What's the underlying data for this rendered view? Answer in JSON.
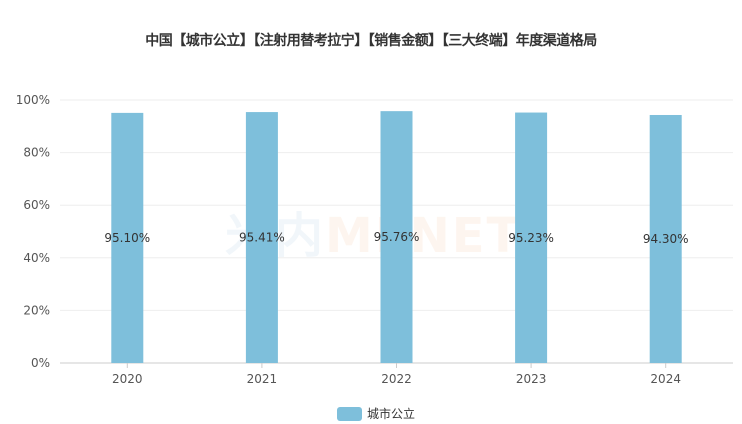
{
  "chart_data": {
    "type": "bar",
    "title": "中国【城市公立】【注射用替考拉宁】【销售金额】【三大终端】年度渠道格局",
    "categories": [
      "2020",
      "2021",
      "2022",
      "2023",
      "2024"
    ],
    "series": [
      {
        "name": "城市公立",
        "values": [
          95.1,
          95.41,
          95.76,
          95.23,
          94.3
        ],
        "labels": [
          "95.10%",
          "95.41%",
          "95.76%",
          "95.23%",
          "94.30%"
        ],
        "color": "#7ebfdb"
      }
    ],
    "yticks": [
      "0%",
      "20%",
      "40%",
      "60%",
      "80%",
      "100%"
    ],
    "ylim": [
      0,
      100
    ],
    "grid": true,
    "legend": "bottom",
    "xlabel": "",
    "ylabel": ""
  },
  "watermark": {
    "cn": "米内",
    "en": "MENET"
  }
}
